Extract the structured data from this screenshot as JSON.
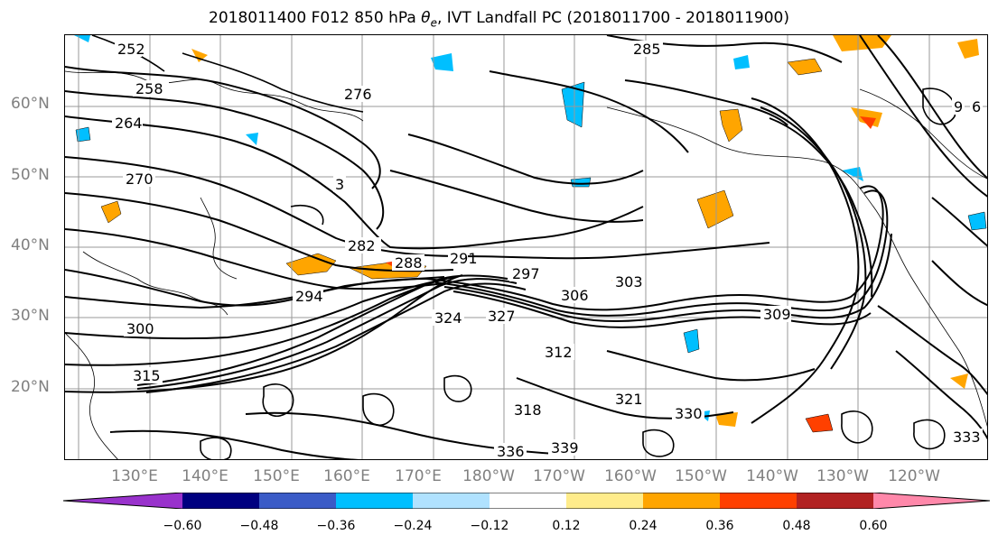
{
  "title": {
    "date": "2018011400 F012 850 hPa",
    "symbol": "θ",
    "subscript": "e",
    "rest": ", IVT Landfall PC (2018011700 - 2018011900)"
  },
  "lat_labels": [
    "60°N",
    "50°N",
    "40°N",
    "30°N",
    "20°N"
  ],
  "lon_labels": [
    "130°E",
    "140°E",
    "150°E",
    "160°E",
    "170°E",
    "180°W",
    "170°W",
    "160°W",
    "150°W",
    "140°W",
    "130°W",
    "120°W"
  ],
  "colorbar": {
    "colors": [
      "#9932cc",
      "#000080",
      "#3a5bc7",
      "#00bfff",
      "#b0e2ff",
      "#ffffff",
      "#ffec8b",
      "#ffa500",
      "#ff4000",
      "#b22222",
      "#ff88aa"
    ],
    "ticks": [
      "−0.60",
      "−0.48",
      "−0.36",
      "−0.24",
      "−0.12",
      "0.12",
      "0.24",
      "0.36",
      "0.48",
      "0.60"
    ]
  },
  "contour_labels": [
    "252",
    "258",
    "264",
    "270",
    "276",
    "282",
    "288",
    "291",
    "294",
    "297",
    "300",
    "303",
    "306",
    "309",
    "312",
    "315",
    "318",
    "321",
    "324",
    "327",
    "330",
    "333",
    "336",
    "339",
    "285",
    "3",
    "6",
    "9"
  ]
}
